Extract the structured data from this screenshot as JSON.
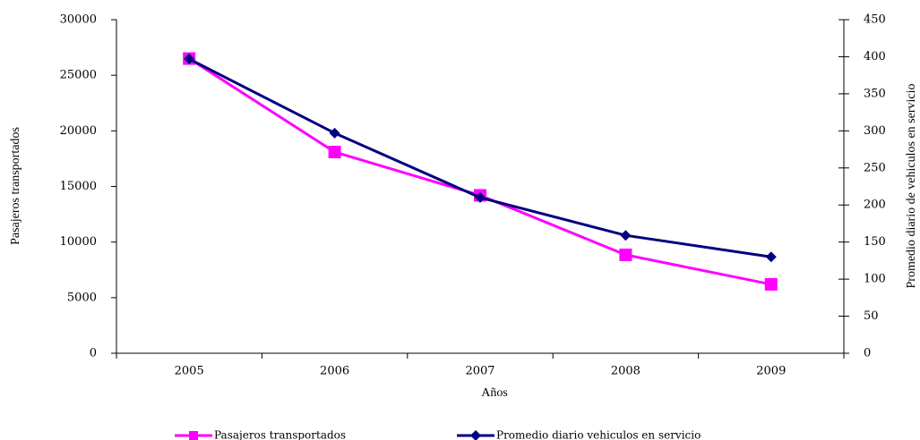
{
  "chart_data": {
    "type": "line",
    "categories": [
      "2005",
      "2006",
      "2007",
      "2008",
      "2009"
    ],
    "x_label": "Años",
    "y_label": "Pasajeros transportados",
    "y2_label": "Promedio diario de vehiculos en servicio",
    "series": [
      {
        "name": "Pasajeros transportados",
        "color": "#ff00ff",
        "marker": "square",
        "values": [
          26500,
          18100,
          14200,
          8850,
          6200
        ]
      },
      {
        "name": "Promedio diario vehiculos en servicio",
        "color": "#000080",
        "marker": "diamond",
        "axis": "y2",
        "values": [
          397,
          297,
          210,
          159,
          130
        ]
      }
    ],
    "ylim": [
      0,
      30000
    ],
    "yticks": [
      0,
      5000,
      10000,
      15000,
      20000,
      25000,
      30000
    ],
    "y2lim": [
      0,
      450
    ],
    "y2ticks": [
      0,
      50,
      100,
      150,
      200,
      250,
      300,
      350,
      400,
      450
    ],
    "grid": false,
    "legend": "bottom"
  }
}
